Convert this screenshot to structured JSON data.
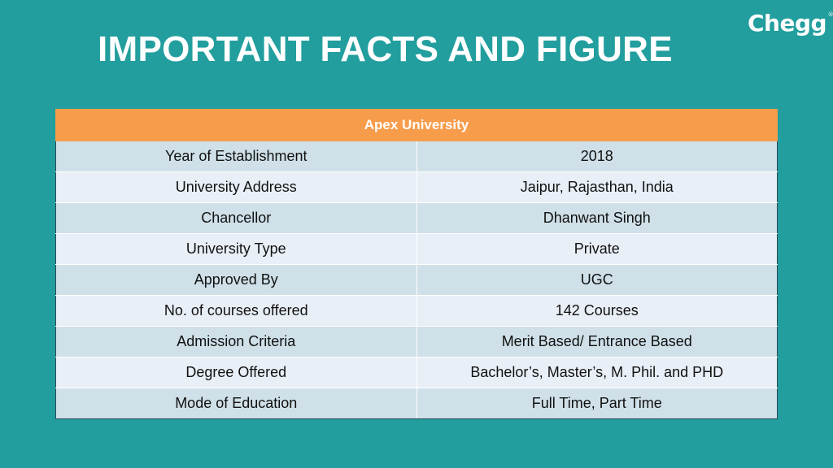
{
  "title": "IMPORTANT FACTS AND FIGURE",
  "logo": {
    "text": "Chegg",
    "mark": "®"
  },
  "table": {
    "header": "Apex University",
    "rows": [
      {
        "label": "Year of Establishment",
        "value": "2018"
      },
      {
        "label": "University Address",
        "value": "Jaipur, Rajasthan, India"
      },
      {
        "label": "Chancellor",
        "value": "Dhanwant Singh"
      },
      {
        "label": "University Type",
        "value": "Private"
      },
      {
        "label": "Approved By",
        "value": "UGC"
      },
      {
        "label": "No. of courses offered",
        "value": "142 Courses"
      },
      {
        "label": "Admission Criteria",
        "value": "Merit Based/ Entrance Based"
      },
      {
        "label": "Degree Offered",
        "value": "Bachelor’s, Master’s, M. Phil. and PHD"
      },
      {
        "label": "Mode of Education",
        "value": "Full Time, Part Time"
      }
    ]
  },
  "colors": {
    "background": "#229e9e",
    "header": "#f79c4a",
    "row_dark": "#cfe0e8",
    "row_light": "#e9eff7"
  }
}
